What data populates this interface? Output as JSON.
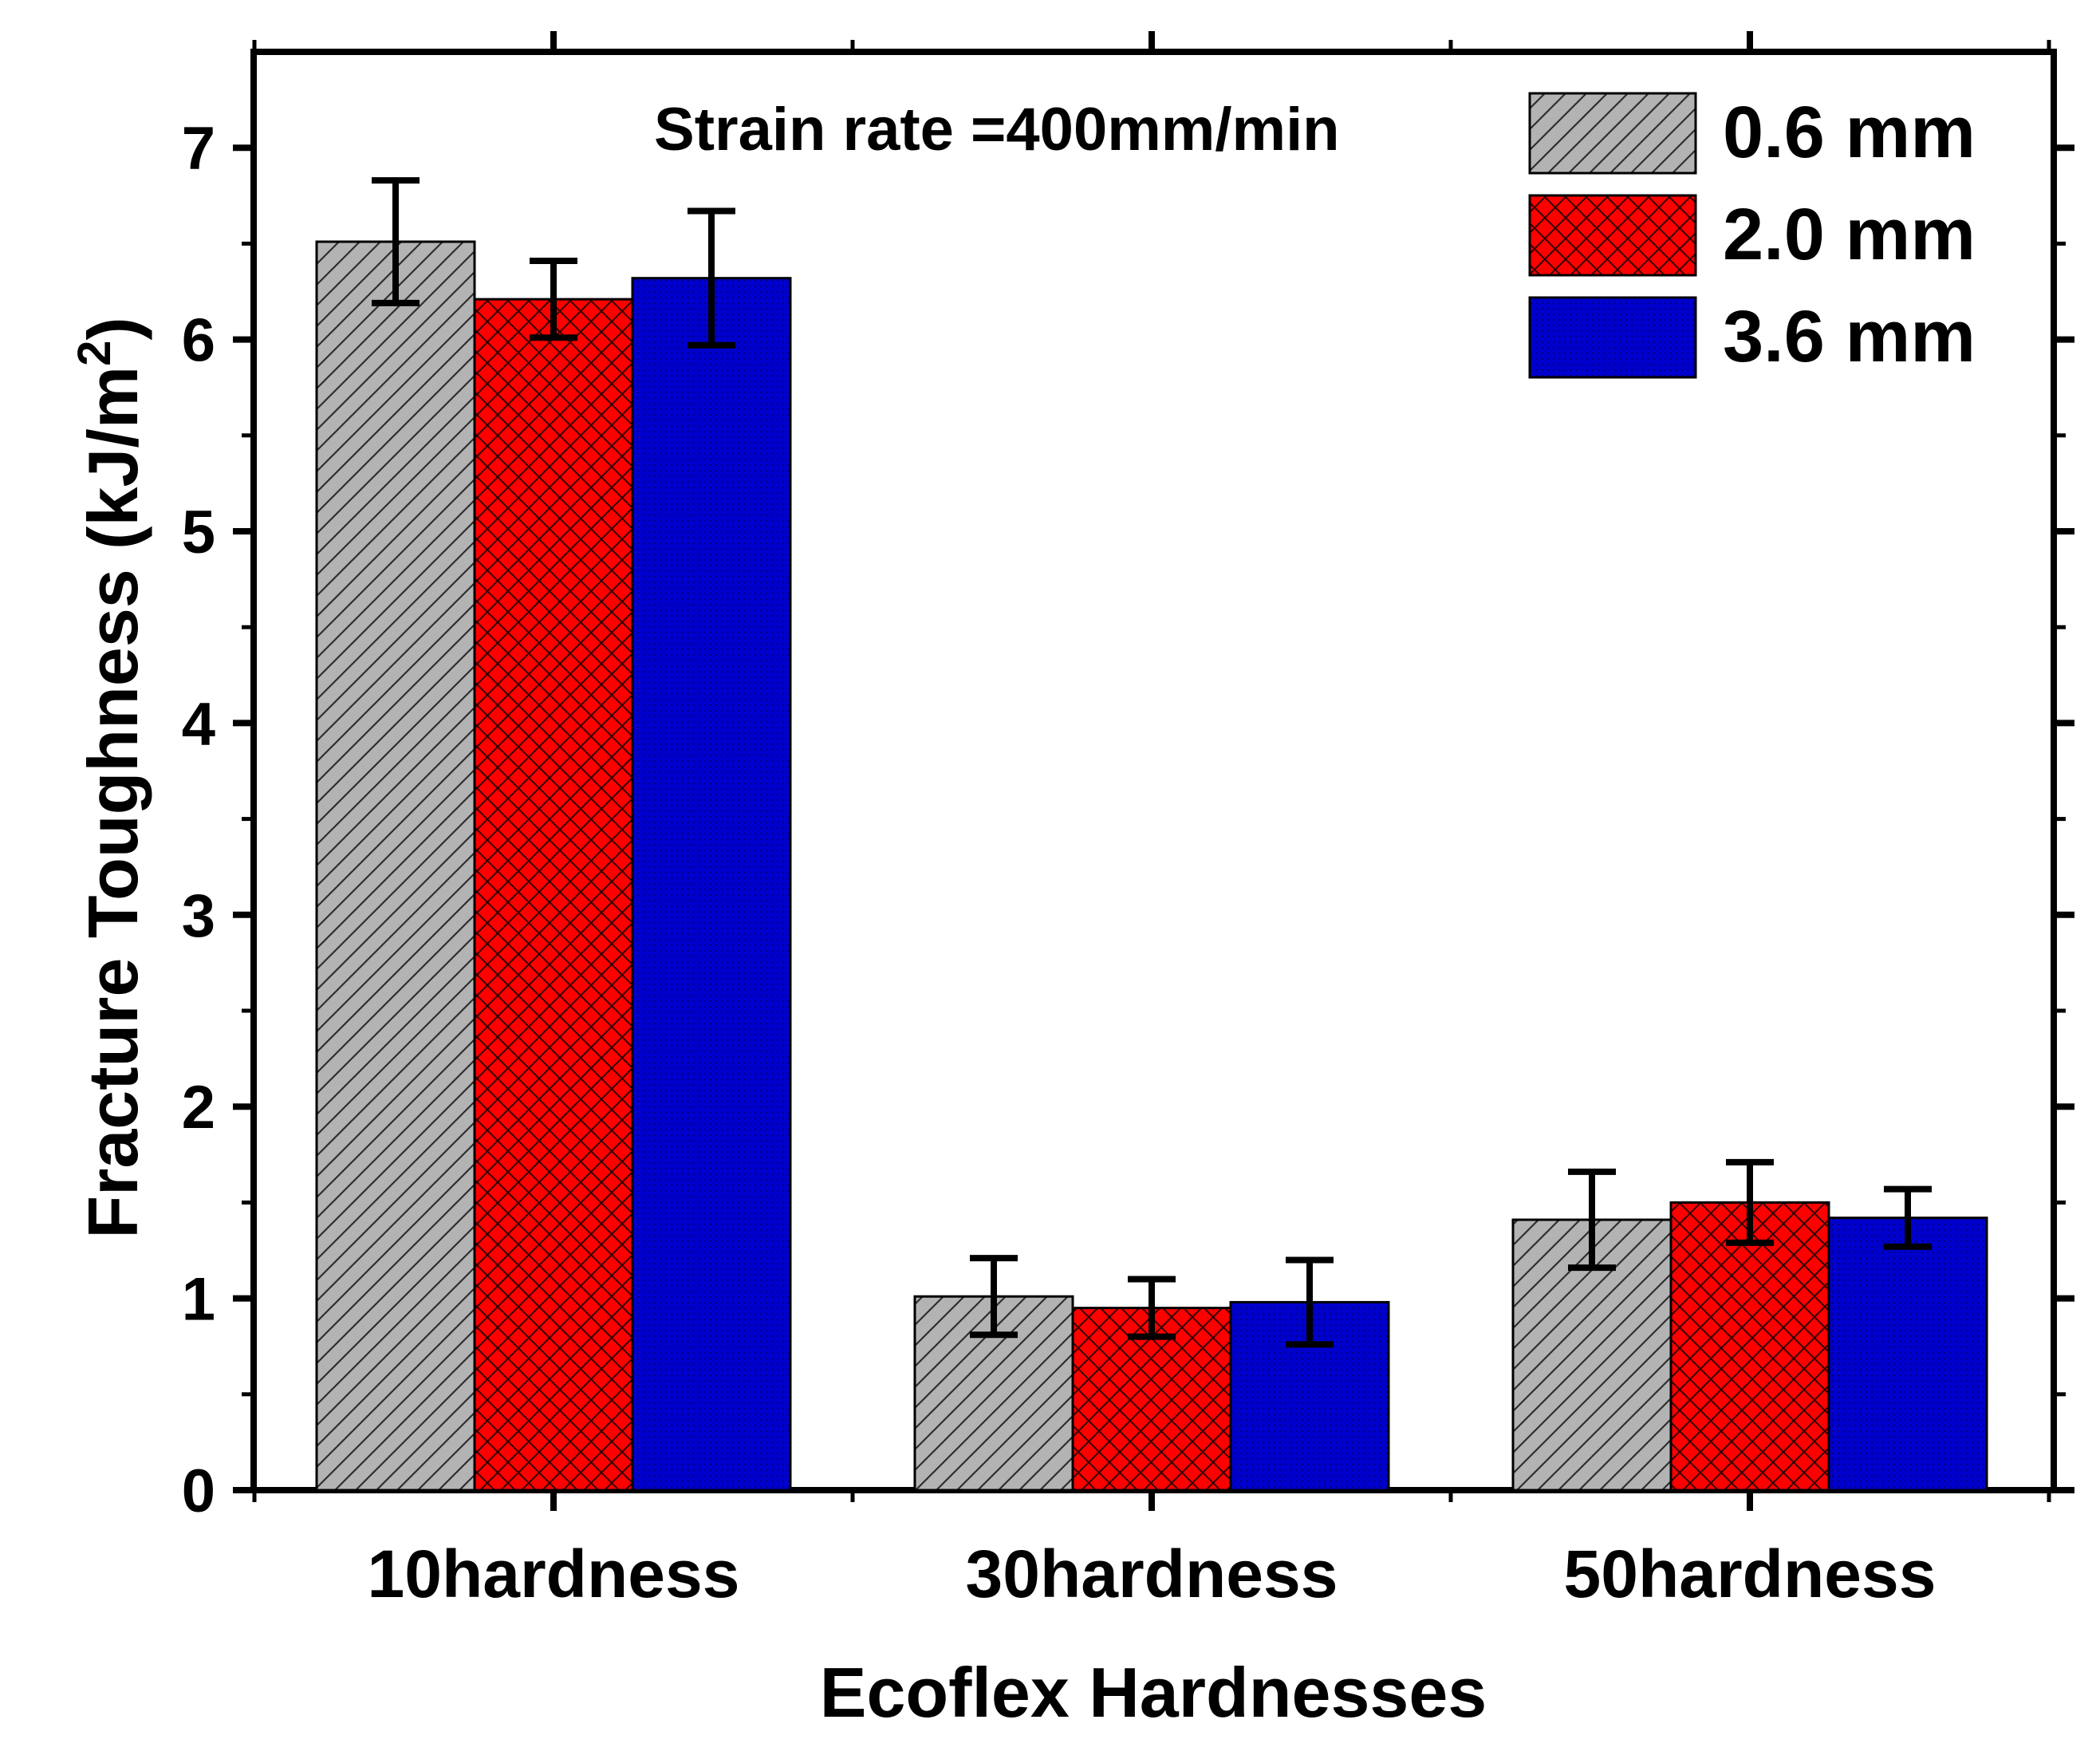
{
  "chart_data": {
    "type": "bar",
    "xlabel": "Ecoflex Hardnesses",
    "ylabel": "Fracture Toughness (kJ/m",
    "ylabel_superscript": "2",
    "ylabel_suffix": ")",
    "ylim": [
      0,
      7.5
    ],
    "yticks": [
      "0",
      "1",
      "2",
      "3",
      "4",
      "5",
      "6",
      "7"
    ],
    "categories": [
      "10hardness",
      "30hardness",
      "50hardness"
    ],
    "annotation": "Strain rate =400mm/min",
    "grid": false,
    "legend_position": "top-right",
    "series": [
      {
        "name": "0.6 mm",
        "values": [
          6.51,
          1.01,
          1.41
        ],
        "errors": [
          0.32,
          0.2,
          0.25
        ],
        "color": "#b3b3b3",
        "pattern": "diagonal-hatch"
      },
      {
        "name": "2.0 mm",
        "values": [
          6.21,
          0.95,
          1.5
        ],
        "errors": [
          0.2,
          0.15,
          0.21
        ],
        "color": "#ff0000",
        "pattern": "crosshatch"
      },
      {
        "name": "3.6 mm",
        "values": [
          6.32,
          0.98,
          1.42
        ],
        "errors": [
          0.35,
          0.22,
          0.15
        ],
        "color": "#0000cc",
        "pattern": "dots"
      }
    ]
  }
}
